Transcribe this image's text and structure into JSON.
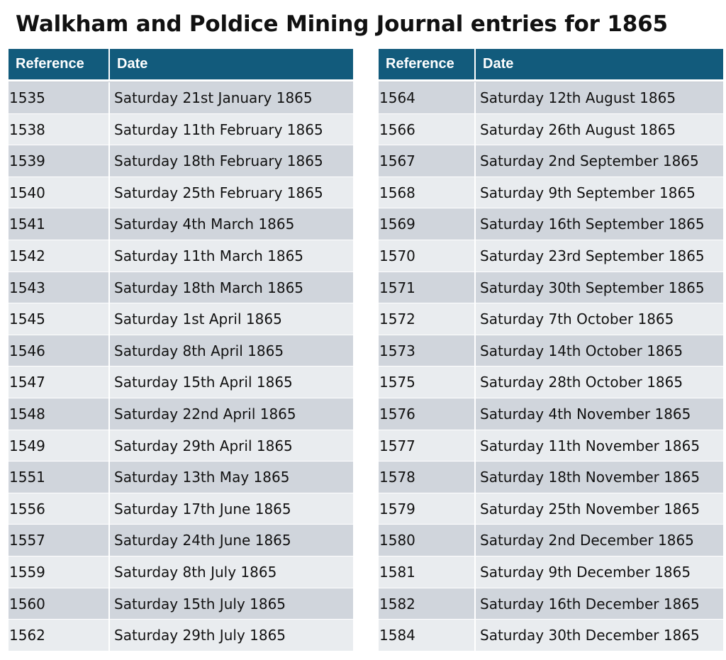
{
  "title": "Walkham and Poldice Mining Journal entries for 1865",
  "colors": {
    "header_background": "#125b7c",
    "row_dark": "#d0d5dc",
    "row_light": "#e9ecef"
  },
  "tables": [
    {
      "headers": {
        "reference": "Reference",
        "date": "Date"
      },
      "rows": [
        {
          "ref": "1535",
          "date": "Saturday 21st January 1865"
        },
        {
          "ref": "1538",
          "date": "Saturday 11th February 1865"
        },
        {
          "ref": "1539",
          "date": "Saturday 18th February 1865"
        },
        {
          "ref": "1540",
          "date": "Saturday 25th February 1865"
        },
        {
          "ref": "1541",
          "date": "Saturday 4th March 1865"
        },
        {
          "ref": "1542",
          "date": "Saturday 11th March 1865"
        },
        {
          "ref": "1543",
          "date": "Saturday 18th March 1865"
        },
        {
          "ref": "1545",
          "date": "Saturday 1st April 1865"
        },
        {
          "ref": "1546",
          "date": "Saturday 8th April 1865"
        },
        {
          "ref": "1547",
          "date": "Saturday 15th April 1865"
        },
        {
          "ref": "1548",
          "date": "Saturday 22nd April 1865"
        },
        {
          "ref": "1549",
          "date": "Saturday 29th April 1865"
        },
        {
          "ref": "1551",
          "date": "Saturday 13th May 1865"
        },
        {
          "ref": "1556",
          "date": "Saturday 17th June 1865"
        },
        {
          "ref": "1557",
          "date": "Saturday 24th June 1865"
        },
        {
          "ref": "1559",
          "date": "Saturday 8th July 1865"
        },
        {
          "ref": "1560",
          "date": "Saturday 15th July 1865"
        },
        {
          "ref": "1562",
          "date": "Saturday 29th July 1865"
        }
      ]
    },
    {
      "headers": {
        "reference": "Reference",
        "date": "Date"
      },
      "rows": [
        {
          "ref": "1564",
          "date": "Saturday 12th August 1865"
        },
        {
          "ref": "1566",
          "date": "Saturday 26th August 1865"
        },
        {
          "ref": "1567",
          "date": "Saturday 2nd September 1865"
        },
        {
          "ref": "1568",
          "date": "Saturday 9th September 1865"
        },
        {
          "ref": "1569",
          "date": "Saturday 16th September 1865"
        },
        {
          "ref": "1570",
          "date": "Saturday 23rd September 1865"
        },
        {
          "ref": "1571",
          "date": "Saturday 30th September 1865"
        },
        {
          "ref": "1572",
          "date": "Saturday 7th October 1865"
        },
        {
          "ref": "1573",
          "date": "Saturday 14th October 1865"
        },
        {
          "ref": "1575",
          "date": "Saturday 28th October 1865"
        },
        {
          "ref": "1576",
          "date": "Saturday 4th November 1865"
        },
        {
          "ref": "1577",
          "date": "Saturday 11th November 1865"
        },
        {
          "ref": "1578",
          "date": "Saturday 18th November 1865"
        },
        {
          "ref": "1579",
          "date": "Saturday 25th November 1865"
        },
        {
          "ref": "1580",
          "date": "Saturday 2nd December 1865"
        },
        {
          "ref": "1581",
          "date": "Saturday 9th December 1865"
        },
        {
          "ref": "1582",
          "date": "Saturday 16th December 1865"
        },
        {
          "ref": "1584",
          "date": "Saturday 30th December 1865"
        }
      ]
    }
  ]
}
